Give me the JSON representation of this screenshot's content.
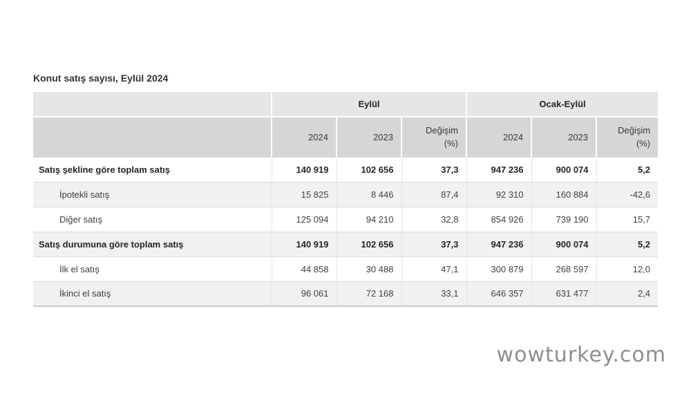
{
  "page": {
    "title": "Konut satış sayısı, Eylül 2024",
    "watermark": "wowturkey.com"
  },
  "colors": {
    "group_header_bg": "#e6e6e6",
    "years_header_bg": "#d6d6d6",
    "alt_row_bg": "#f1f1f1",
    "row_border": "#dadada",
    "bottom_border": "#cccccc",
    "text": "#404040",
    "bold_text": "#262626",
    "watermark_text": "#8e8e8e"
  },
  "table": {
    "column_groups": [
      {
        "label": "Eylül"
      },
      {
        "label": "Ocak-Eylül"
      }
    ],
    "sub_headers": [
      "2024",
      "2023",
      "Değişim\n(%)",
      "2024",
      "2023",
      "Değişim\n(%)"
    ],
    "rows": [
      {
        "label": "Satış şekline göre toplam satış",
        "bold": true,
        "indent": false,
        "values": [
          "140 919",
          "102 656",
          "37,3",
          "947 236",
          "900 074",
          "5,2"
        ]
      },
      {
        "label": "İpotekli satış",
        "bold": false,
        "indent": true,
        "values": [
          "15 825",
          "8 446",
          "87,4",
          "92 310",
          "160 884",
          "-42,6"
        ]
      },
      {
        "label": "Diğer satış",
        "bold": false,
        "indent": true,
        "values": [
          "125 094",
          "94 210",
          "32,8",
          "854 926",
          "739 190",
          "15,7"
        ]
      },
      {
        "label": "Satış durumuna göre toplam satış",
        "bold": true,
        "indent": false,
        "values": [
          "140 919",
          "102 656",
          "37,3",
          "947 236",
          "900 074",
          "5,2"
        ]
      },
      {
        "label": "İlk el satış",
        "bold": false,
        "indent": true,
        "values": [
          "44 858",
          "30 488",
          "47,1",
          "300 879",
          "268 597",
          "12,0"
        ]
      },
      {
        "label": "İkinci el satış",
        "bold": false,
        "indent": true,
        "values": [
          "96 061",
          "72 168",
          "33,1",
          "646 357",
          "631 477",
          "2,4"
        ]
      }
    ]
  },
  "chart_data": {
    "type": "table",
    "title": "Konut satış sayısı, Eylül 2024",
    "column_groups": [
      "Eylül",
      "Ocak-Eylül"
    ],
    "columns": [
      "Eylül 2024",
      "Eylül 2023",
      "Eylül Değişim (%)",
      "Ocak-Eylül 2024",
      "Ocak-Eylül 2023",
      "Ocak-Eylül Değişim (%)"
    ],
    "rows": [
      {
        "label": "Satış şekline göre toplam satış",
        "values": [
          140919,
          102656,
          37.3,
          947236,
          900074,
          5.2
        ]
      },
      {
        "label": "İpotekli satış",
        "values": [
          15825,
          8446,
          87.4,
          92310,
          160884,
          -42.6
        ]
      },
      {
        "label": "Diğer satış",
        "values": [
          125094,
          94210,
          32.8,
          854926,
          739190,
          15.7
        ]
      },
      {
        "label": "Satış durumuna göre toplam satış",
        "values": [
          140919,
          102656,
          37.3,
          947236,
          900074,
          5.2
        ]
      },
      {
        "label": "İlk el satış",
        "values": [
          44858,
          30488,
          47.1,
          300879,
          268597,
          12.0
        ]
      },
      {
        "label": "İkinci el satış",
        "values": [
          96061,
          72168,
          33.1,
          646357,
          631477,
          2.4
        ]
      }
    ]
  }
}
